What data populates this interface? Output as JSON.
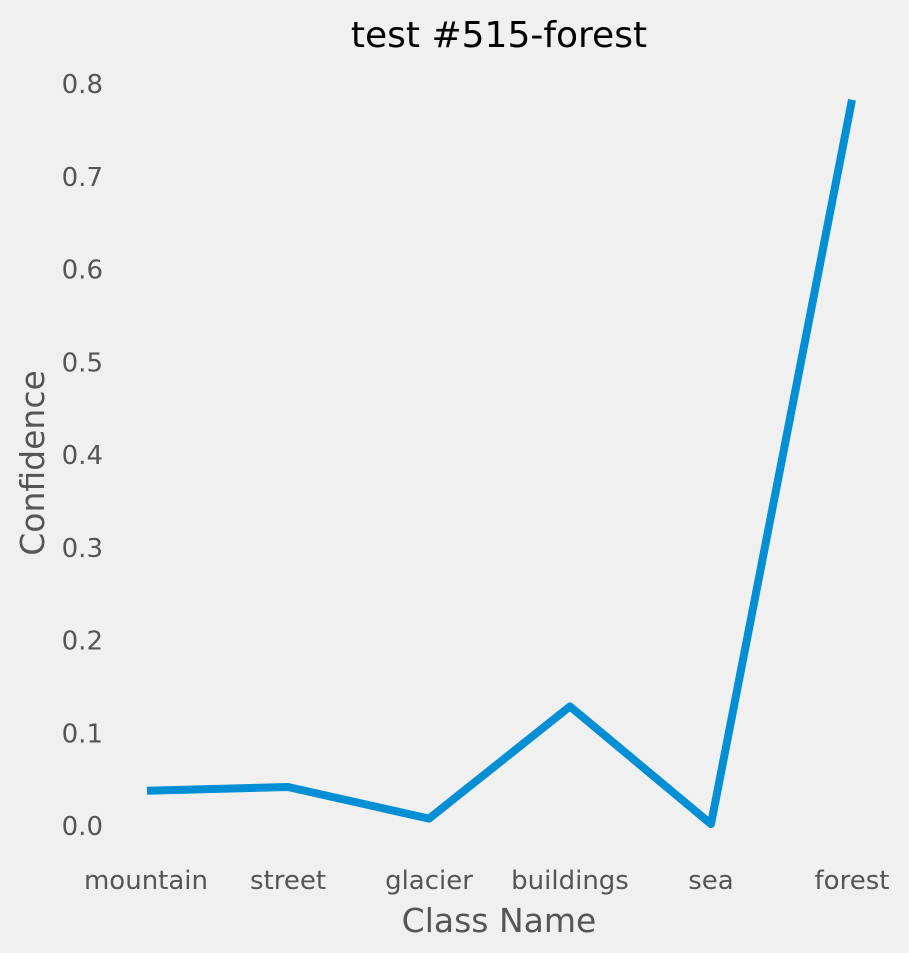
{
  "chart_data": {
    "type": "line",
    "title": "test #515-forest",
    "xlabel": "Class Name",
    "ylabel": "Confidence",
    "categories": [
      "mountain",
      "street",
      "glacier",
      "buildings",
      "sea",
      "forest"
    ],
    "series": [
      {
        "values": [
          0.038,
          0.042,
          0.008,
          0.129,
          0.002,
          0.783
        ]
      }
    ],
    "yticks": [
      "0.0",
      "0.1",
      "0.2",
      "0.3",
      "0.4",
      "0.5",
      "0.6",
      "0.7",
      "0.8"
    ],
    "ylim": [
      -0.04,
      0.8
    ],
    "grid": false,
    "line_color": "#008fd5",
    "background": "#f0f0f0"
  }
}
